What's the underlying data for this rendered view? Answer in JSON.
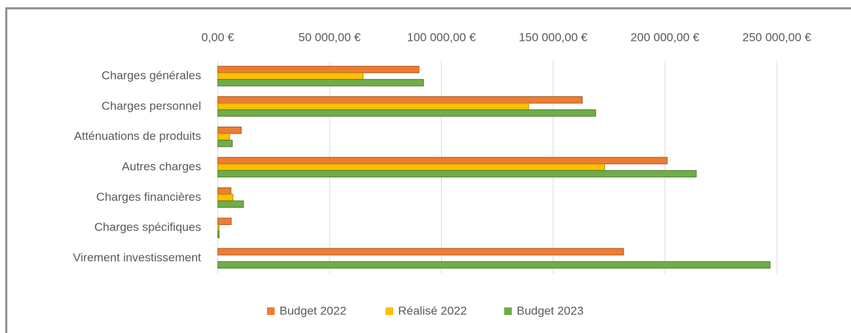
{
  "chart_data": {
    "type": "bar",
    "orientation": "horizontal",
    "categories": [
      "Charges générales",
      "Charges personnel",
      "Atténuations de produits",
      "Autres charges",
      "Charges financières",
      "Charges spécifiques",
      "Virement investissement"
    ],
    "series": [
      {
        "name": "Budget 2022",
        "color": "#ed7d31",
        "values": [
          90000,
          163000,
          10500,
          201000,
          5900,
          6000,
          181500
        ]
      },
      {
        "name": "Réalisé 2022",
        "color": "#ffc000",
        "values": [
          65000,
          139000,
          5300,
          173000,
          6800,
          600,
          0
        ]
      },
      {
        "name": "Budget 2023",
        "color": "#70ad47",
        "values": [
          92000,
          169000,
          6500,
          214000,
          11500,
          600,
          247000
        ]
      }
    ],
    "xlim": [
      0,
      250000
    ],
    "xticks": [
      {
        "value": 0,
        "label": "0,00 €"
      },
      {
        "value": 50000,
        "label": "50 000,00 €"
      },
      {
        "value": 100000,
        "label": "100 000,00 €"
      },
      {
        "value": 150000,
        "label": "150 000,00 €"
      },
      {
        "value": 200000,
        "label": "200 000,00 €"
      },
      {
        "value": 250000,
        "label": "250 000,00 €"
      }
    ],
    "grid": true,
    "legend": "bottom"
  }
}
